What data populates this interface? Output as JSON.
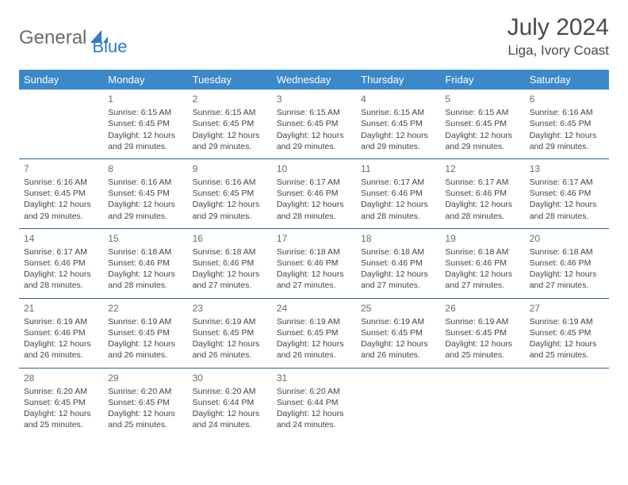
{
  "logo": {
    "part1": "General",
    "part2": "Blue",
    "icon_color": "#2d7cc4"
  },
  "title": "July 2024",
  "location": "Liga, Ivory Coast",
  "colors": {
    "header_bg": "#3b89c9",
    "header_text": "#ffffff",
    "row_border": "#2d5f8f",
    "body_text": "#444444"
  },
  "typography": {
    "title_fontsize": 30,
    "location_fontsize": 17,
    "th_fontsize": 13,
    "cell_fontsize": 10.5
  },
  "weekdays": [
    "Sunday",
    "Monday",
    "Tuesday",
    "Wednesday",
    "Thursday",
    "Friday",
    "Saturday"
  ],
  "weeks": [
    [
      null,
      {
        "n": "1",
        "sr": "Sunrise: 6:15 AM",
        "ss": "Sunset: 6:45 PM",
        "d1": "Daylight: 12 hours",
        "d2": "and 29 minutes."
      },
      {
        "n": "2",
        "sr": "Sunrise: 6:15 AM",
        "ss": "Sunset: 6:45 PM",
        "d1": "Daylight: 12 hours",
        "d2": "and 29 minutes."
      },
      {
        "n": "3",
        "sr": "Sunrise: 6:15 AM",
        "ss": "Sunset: 6:45 PM",
        "d1": "Daylight: 12 hours",
        "d2": "and 29 minutes."
      },
      {
        "n": "4",
        "sr": "Sunrise: 6:15 AM",
        "ss": "Sunset: 6:45 PM",
        "d1": "Daylight: 12 hours",
        "d2": "and 29 minutes."
      },
      {
        "n": "5",
        "sr": "Sunrise: 6:15 AM",
        "ss": "Sunset: 6:45 PM",
        "d1": "Daylight: 12 hours",
        "d2": "and 29 minutes."
      },
      {
        "n": "6",
        "sr": "Sunrise: 6:16 AM",
        "ss": "Sunset: 6:45 PM",
        "d1": "Daylight: 12 hours",
        "d2": "and 29 minutes."
      }
    ],
    [
      {
        "n": "7",
        "sr": "Sunrise: 6:16 AM",
        "ss": "Sunset: 6:45 PM",
        "d1": "Daylight: 12 hours",
        "d2": "and 29 minutes."
      },
      {
        "n": "8",
        "sr": "Sunrise: 6:16 AM",
        "ss": "Sunset: 6:45 PM",
        "d1": "Daylight: 12 hours",
        "d2": "and 29 minutes."
      },
      {
        "n": "9",
        "sr": "Sunrise: 6:16 AM",
        "ss": "Sunset: 6:45 PM",
        "d1": "Daylight: 12 hours",
        "d2": "and 29 minutes."
      },
      {
        "n": "10",
        "sr": "Sunrise: 6:17 AM",
        "ss": "Sunset: 6:46 PM",
        "d1": "Daylight: 12 hours",
        "d2": "and 28 minutes."
      },
      {
        "n": "11",
        "sr": "Sunrise: 6:17 AM",
        "ss": "Sunset: 6:46 PM",
        "d1": "Daylight: 12 hours",
        "d2": "and 28 minutes."
      },
      {
        "n": "12",
        "sr": "Sunrise: 6:17 AM",
        "ss": "Sunset: 6:46 PM",
        "d1": "Daylight: 12 hours",
        "d2": "and 28 minutes."
      },
      {
        "n": "13",
        "sr": "Sunrise: 6:17 AM",
        "ss": "Sunset: 6:46 PM",
        "d1": "Daylight: 12 hours",
        "d2": "and 28 minutes."
      }
    ],
    [
      {
        "n": "14",
        "sr": "Sunrise: 6:17 AM",
        "ss": "Sunset: 6:46 PM",
        "d1": "Daylight: 12 hours",
        "d2": "and 28 minutes."
      },
      {
        "n": "15",
        "sr": "Sunrise: 6:18 AM",
        "ss": "Sunset: 6:46 PM",
        "d1": "Daylight: 12 hours",
        "d2": "and 28 minutes."
      },
      {
        "n": "16",
        "sr": "Sunrise: 6:18 AM",
        "ss": "Sunset: 6:46 PM",
        "d1": "Daylight: 12 hours",
        "d2": "and 27 minutes."
      },
      {
        "n": "17",
        "sr": "Sunrise: 6:18 AM",
        "ss": "Sunset: 6:46 PM",
        "d1": "Daylight: 12 hours",
        "d2": "and 27 minutes."
      },
      {
        "n": "18",
        "sr": "Sunrise: 6:18 AM",
        "ss": "Sunset: 6:46 PM",
        "d1": "Daylight: 12 hours",
        "d2": "and 27 minutes."
      },
      {
        "n": "19",
        "sr": "Sunrise: 6:18 AM",
        "ss": "Sunset: 6:46 PM",
        "d1": "Daylight: 12 hours",
        "d2": "and 27 minutes."
      },
      {
        "n": "20",
        "sr": "Sunrise: 6:18 AM",
        "ss": "Sunset: 6:46 PM",
        "d1": "Daylight: 12 hours",
        "d2": "and 27 minutes."
      }
    ],
    [
      {
        "n": "21",
        "sr": "Sunrise: 6:19 AM",
        "ss": "Sunset: 6:46 PM",
        "d1": "Daylight: 12 hours",
        "d2": "and 26 minutes."
      },
      {
        "n": "22",
        "sr": "Sunrise: 6:19 AM",
        "ss": "Sunset: 6:45 PM",
        "d1": "Daylight: 12 hours",
        "d2": "and 26 minutes."
      },
      {
        "n": "23",
        "sr": "Sunrise: 6:19 AM",
        "ss": "Sunset: 6:45 PM",
        "d1": "Daylight: 12 hours",
        "d2": "and 26 minutes."
      },
      {
        "n": "24",
        "sr": "Sunrise: 6:19 AM",
        "ss": "Sunset: 6:45 PM",
        "d1": "Daylight: 12 hours",
        "d2": "and 26 minutes."
      },
      {
        "n": "25",
        "sr": "Sunrise: 6:19 AM",
        "ss": "Sunset: 6:45 PM",
        "d1": "Daylight: 12 hours",
        "d2": "and 26 minutes."
      },
      {
        "n": "26",
        "sr": "Sunrise: 6:19 AM",
        "ss": "Sunset: 6:45 PM",
        "d1": "Daylight: 12 hours",
        "d2": "and 25 minutes."
      },
      {
        "n": "27",
        "sr": "Sunrise: 6:19 AM",
        "ss": "Sunset: 6:45 PM",
        "d1": "Daylight: 12 hours",
        "d2": "and 25 minutes."
      }
    ],
    [
      {
        "n": "28",
        "sr": "Sunrise: 6:20 AM",
        "ss": "Sunset: 6:45 PM",
        "d1": "Daylight: 12 hours",
        "d2": "and 25 minutes."
      },
      {
        "n": "29",
        "sr": "Sunrise: 6:20 AM",
        "ss": "Sunset: 6:45 PM",
        "d1": "Daylight: 12 hours",
        "d2": "and 25 minutes."
      },
      {
        "n": "30",
        "sr": "Sunrise: 6:20 AM",
        "ss": "Sunset: 6:44 PM",
        "d1": "Daylight: 12 hours",
        "d2": "and 24 minutes."
      },
      {
        "n": "31",
        "sr": "Sunrise: 6:20 AM",
        "ss": "Sunset: 6:44 PM",
        "d1": "Daylight: 12 hours",
        "d2": "and 24 minutes."
      },
      null,
      null,
      null
    ]
  ]
}
